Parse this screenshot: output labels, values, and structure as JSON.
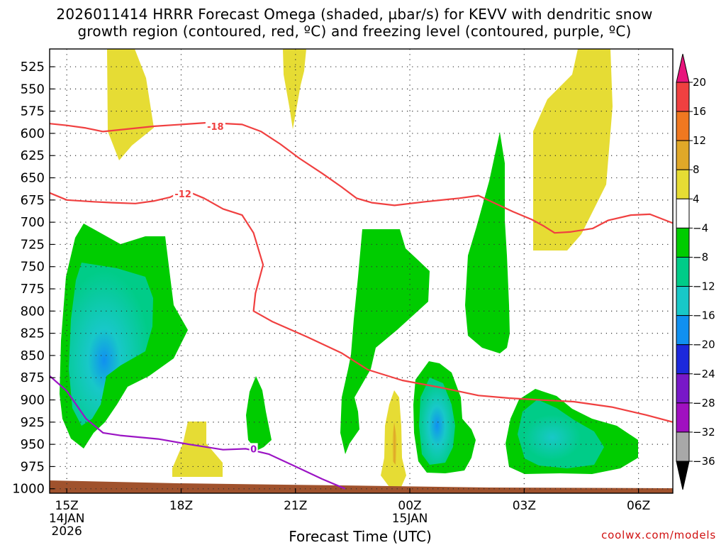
{
  "title": {
    "line1": "2026011414 HRRR Forecast Omega (shaded, µbar/s) for KEVV with dendritic snow",
    "line2": "growth region (contoured, red, ºC) and freezing level (contoured, purple, ºC)"
  },
  "credit": "coolwx.com/models",
  "chart_data": {
    "type": "time-height cross section (filled contour)",
    "title": "2026011414 HRRR Forecast Omega (shaded, µbar/s) for KEVV with dendritic snow growth region (contoured, red, ºC) and freezing level (contoured, purple, ºC)",
    "xlabel": "Forecast Time (UTC)",
    "ylabel": "",
    "x_range_hours_from_14Z": [
      0.55,
      16.9
    ],
    "y_range_hPa": [
      1005,
      505
    ],
    "grid": true,
    "y_ticks": [
      "525",
      "550",
      "575",
      "600",
      "625",
      "650",
      "675",
      "700",
      "725",
      "750",
      "775",
      "800",
      "825",
      "850",
      "875",
      "900",
      "925",
      "950",
      "975",
      "1000"
    ],
    "x_ticks": [
      {
        "hour": 1,
        "label": "15Z",
        "sub1": "14JAN",
        "sub2": "2026"
      },
      {
        "hour": 4,
        "label": "18Z",
        "sub1": "",
        "sub2": ""
      },
      {
        "hour": 7,
        "label": "21Z",
        "sub1": "",
        "sub2": ""
      },
      {
        "hour": 10,
        "label": "00Z",
        "sub1": "15JAN",
        "sub2": ""
      },
      {
        "hour": 13,
        "label": "03Z",
        "sub1": "",
        "sub2": ""
      },
      {
        "hour": 16,
        "label": "06Z",
        "sub1": "",
        "sub2": ""
      }
    ],
    "colorbar": {
      "levels": [
        "20",
        "16",
        "12",
        "8",
        "4",
        "−4",
        "−8",
        "−12",
        "−16",
        "−20",
        "−24",
        "−28",
        "−32",
        "−36"
      ],
      "bins": [
        {
          "range": "> 20",
          "color": "#e8147c"
        },
        {
          "range": "16 to 20",
          "color": "#f04040"
        },
        {
          "range": "12 to 16",
          "color": "#f07820"
        },
        {
          "range": "8 to 12",
          "color": "#e0a828"
        },
        {
          "range": "4 to 8",
          "color": "#e6dc34"
        },
        {
          "range": "-4 to 4",
          "color": "#ffffff"
        },
        {
          "range": "-8 to -4",
          "color": "#00cc00"
        },
        {
          "range": "-12 to -8",
          "color": "#00cc88"
        },
        {
          "range": "-16 to -12",
          "color": "#18c8c8"
        },
        {
          "range": "-20 to -16",
          "color": "#1090f0"
        },
        {
          "range": "-24 to -20",
          "color": "#1c28dc"
        },
        {
          "range": "-28 to -24",
          "color": "#7818c8"
        },
        {
          "range": "-32 to -28",
          "color": "#a010c0"
        },
        {
          "range": "-36 to -32",
          "color": "#a8a8a8"
        },
        {
          "range": "< -36",
          "color": "#000000"
        }
      ]
    },
    "contours": [
      {
        "name": "-18 ºC isotherm",
        "label": "-18",
        "color": "#f04040",
        "label_point": {
          "hour": 4.9,
          "hPa": 592
        },
        "points": [
          [
            0.55,
            589
          ],
          [
            1.0,
            591
          ],
          [
            1.5,
            594
          ],
          [
            1.95,
            598
          ],
          [
            2.4,
            596
          ],
          [
            3.3,
            592
          ],
          [
            4.0,
            590
          ],
          [
            4.7,
            588
          ],
          [
            5.6,
            590
          ],
          [
            6.1,
            598
          ],
          [
            6.6,
            612
          ],
          [
            7.1,
            628
          ],
          [
            7.7,
            645
          ],
          [
            8.2,
            660
          ],
          [
            8.6,
            673
          ],
          [
            9.0,
            678
          ],
          [
            9.6,
            681
          ],
          [
            10.4,
            677
          ],
          [
            11.3,
            673
          ],
          [
            11.8,
            670
          ],
          [
            12.2,
            678
          ],
          [
            12.7,
            688
          ],
          [
            13.2,
            697
          ],
          [
            13.5,
            704
          ],
          [
            13.8,
            712
          ],
          [
            14.2,
            711
          ],
          [
            14.8,
            707
          ],
          [
            15.2,
            698
          ],
          [
            15.8,
            692
          ],
          [
            16.3,
            691
          ],
          [
            16.9,
            701
          ]
        ]
      },
      {
        "name": "-12 ºC isotherm",
        "label": "-12",
        "color": "#f04040",
        "label_point": {
          "hour": 4.05,
          "hPa": 668
        },
        "points": [
          [
            0.55,
            667
          ],
          [
            1.0,
            675
          ],
          [
            1.7,
            677
          ],
          [
            2.2,
            678
          ],
          [
            2.8,
            679
          ],
          [
            3.3,
            676
          ],
          [
            3.7,
            672
          ],
          [
            4.1,
            664
          ],
          [
            4.6,
            673
          ],
          [
            5.1,
            685
          ],
          [
            5.6,
            692
          ],
          [
            5.9,
            712
          ],
          [
            6.15,
            748
          ],
          [
            5.95,
            780
          ],
          [
            5.9,
            800
          ],
          [
            6.4,
            812
          ],
          [
            7.3,
            829
          ],
          [
            8.2,
            847
          ],
          [
            8.9,
            866
          ],
          [
            9.8,
            878
          ],
          [
            10.8,
            886
          ],
          [
            11.8,
            895
          ],
          [
            12.6,
            898
          ],
          [
            13.4,
            900
          ],
          [
            14.3,
            902
          ],
          [
            15.3,
            908
          ],
          [
            16.2,
            917
          ],
          [
            16.9,
            925
          ]
        ]
      },
      {
        "name": "0 ºC freezing level",
        "label": "0",
        "color": "#9b14c4",
        "label_point": {
          "hour": 5.9,
          "hPa": 955
        },
        "points": [
          [
            0.55,
            873
          ],
          [
            1.0,
            890
          ],
          [
            1.5,
            921
          ],
          [
            1.95,
            937
          ],
          [
            2.4,
            940
          ],
          [
            3.4,
            944
          ],
          [
            4.2,
            950
          ],
          [
            5.1,
            956
          ],
          [
            5.7,
            955
          ],
          [
            6.3,
            961
          ],
          [
            7.0,
            975
          ],
          [
            7.7,
            989
          ],
          [
            8.3,
            1000
          ]
        ]
      }
    ]
  }
}
